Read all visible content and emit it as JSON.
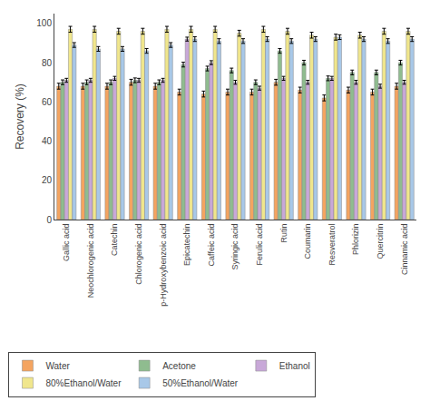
{
  "chart_data": {
    "type": "bar",
    "categories": [
      "Gallic acid",
      "Neochlorogenic acid",
      "Catechin",
      "Chlorogenic acid",
      "p-Hydroxybenzoic acid",
      "Epicatechin",
      "Caffeic acid",
      "Syringic acid",
      "Ferulic acid",
      "Rutin",
      "Coumarin",
      "Resveratrol",
      "Phlorizin",
      "Quercitrin",
      "Cinnamic acid"
    ],
    "series": [
      {
        "name": "Water",
        "color": "#F4A460",
        "values": [
          68,
          68,
          68,
          70,
          68,
          65,
          64,
          65,
          65,
          70,
          66,
          62,
          66,
          65,
          68
        ],
        "errors": [
          1.5,
          1.5,
          1.5,
          1.5,
          1.5,
          1.5,
          1.5,
          1.5,
          1.5,
          1.5,
          1.5,
          1.5,
          1.5,
          1.5,
          1.5
        ]
      },
      {
        "name": "Acetone",
        "color": "#8FBC8F",
        "values": [
          70,
          70,
          70,
          71,
          70,
          79,
          77,
          76,
          70,
          86,
          80,
          72,
          75,
          75,
          80
        ],
        "errors": [
          1.2,
          1.2,
          1.2,
          1.2,
          1.2,
          1.2,
          1.2,
          1.2,
          1.2,
          1.2,
          1.2,
          1.2,
          1.2,
          1.2,
          1.2
        ]
      },
      {
        "name": "Ethanol",
        "color": "#C8A8D8",
        "values": [
          71,
          71,
          72,
          71,
          71,
          92,
          80,
          70,
          67,
          72,
          70,
          72,
          70,
          68,
          70
        ],
        "errors": [
          1.0,
          1.0,
          1.0,
          1.0,
          1.0,
          1.0,
          1.0,
          1.0,
          1.0,
          1.0,
          1.0,
          1.0,
          1.0,
          1.0,
          1.0
        ]
      },
      {
        "name": "80%Ethanol/Water",
        "color": "#F0E68C",
        "values": [
          97,
          97,
          96,
          96,
          97,
          97,
          97,
          95,
          97,
          96,
          94,
          93,
          94,
          96,
          96
        ],
        "errors": [
          1.5,
          1.5,
          1.5,
          1.5,
          1.5,
          1.5,
          1.5,
          1.5,
          1.5,
          1.5,
          1.5,
          1.5,
          1.5,
          1.5,
          1.5
        ]
      },
      {
        "name": "50%Ethanol/Water",
        "color": "#A8C8E8",
        "values": [
          89,
          87,
          87,
          86,
          89,
          92,
          91,
          91,
          92,
          91,
          92,
          93,
          92,
          91,
          92
        ],
        "errors": [
          1.2,
          1.2,
          1.2,
          1.2,
          1.2,
          1.2,
          1.2,
          1.2,
          1.2,
          1.2,
          1.2,
          1.2,
          1.2,
          1.2,
          1.2
        ]
      }
    ],
    "ylabel": "Recovery (%)",
    "ylim": [
      0,
      105
    ],
    "yticks": [
      0,
      20,
      40,
      60,
      80,
      100
    ],
    "grid": false,
    "legend": "below"
  }
}
